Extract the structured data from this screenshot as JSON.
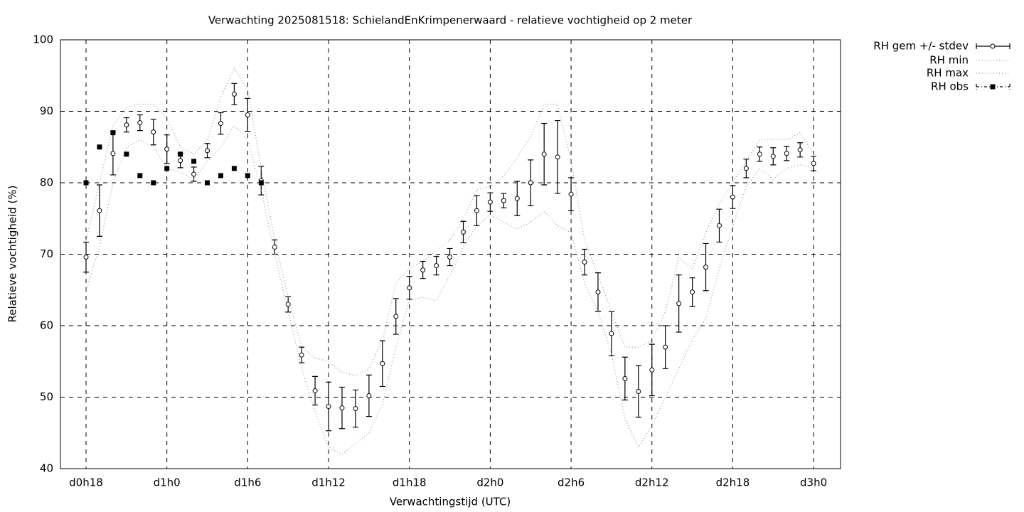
{
  "chart_data": {
    "type": "errorbar-line",
    "title": "Verwachting 2025081518: SchielandEnKrimpenerwaard - relatieve vochtigheid op 2 meter",
    "x_label": "Verwachtingstijd (UTC)",
    "y_label": "Relatieve vochtigheid (%)",
    "xlim": [
      16.1,
      74
    ],
    "ylim": [
      40,
      100
    ],
    "xticks": [
      {
        "value": 18,
        "label": "d0h18"
      },
      {
        "value": 24,
        "label": "d1h0"
      },
      {
        "value": 30,
        "label": "d1h6"
      },
      {
        "value": 36,
        "label": "d1h12"
      },
      {
        "value": 42,
        "label": "d1h18"
      },
      {
        "value": 48,
        "label": "d2h0"
      },
      {
        "value": 54,
        "label": "d2h6"
      },
      {
        "value": 60,
        "label": "d2h12"
      },
      {
        "value": 66,
        "label": "d2h18"
      },
      {
        "value": 72,
        "label": "d3h0"
      }
    ],
    "yticks": [
      40,
      50,
      60,
      70,
      80,
      90,
      100
    ],
    "grid": true,
    "legend": "outside-top-right",
    "x": [
      18,
      19,
      20,
      21,
      22,
      23,
      24,
      25,
      26,
      27,
      28,
      29,
      30,
      31,
      32,
      33,
      34,
      35,
      36,
      37,
      38,
      39,
      40,
      41,
      42,
      43,
      44,
      45,
      46,
      47,
      48,
      49,
      50,
      51,
      52,
      53,
      54,
      55,
      56,
      57,
      58,
      59,
      60,
      61,
      62,
      63,
      64,
      65,
      66,
      67,
      68,
      69,
      70,
      71,
      72
    ],
    "series": [
      {
        "name": "RH gem +/- stdev",
        "style": "errorbar",
        "color": "#000000",
        "values": [
          69.6,
          76.1,
          84.1,
          88.1,
          88.4,
          87.1,
          84.7,
          83.1,
          81.2,
          84.5,
          88.3,
          92.4,
          89.5,
          80.3,
          71.0,
          63.0,
          55.9,
          50.9,
          48.7,
          48.5,
          48.4,
          50.2,
          54.7,
          61.3,
          65.3,
          67.8,
          68.4,
          69.6,
          73.1,
          76.1,
          77.3,
          77.5,
          77.8,
          80.0,
          84.0,
          83.6,
          78.4,
          68.9,
          64.7,
          58.9,
          52.6,
          50.8,
          53.8,
          57.0,
          63.1,
          64.7,
          68.2,
          74.0,
          78.0,
          82.0,
          84.0,
          83.7,
          84.1,
          84.6,
          82.7
        ],
        "errors": [
          2.1,
          3.6,
          3.0,
          1.0,
          1.1,
          1.8,
          2.0,
          1.0,
          1.0,
          1.0,
          1.5,
          1.5,
          2.3,
          2.0,
          1.0,
          1.1,
          1.1,
          2.0,
          3.4,
          2.9,
          2.6,
          2.9,
          3.2,
          2.5,
          1.6,
          1.2,
          1.3,
          1.2,
          1.5,
          2.1,
          1.3,
          1.0,
          2.4,
          3.2,
          4.3,
          5.1,
          2.3,
          1.8,
          2.7,
          3.1,
          3.0,
          3.6,
          3.6,
          3.0,
          4.0,
          2.0,
          3.3,
          2.3,
          1.6,
          1.3,
          1.0,
          1.2,
          1.0,
          1.0,
          1.0
        ]
      },
      {
        "name": "RH min",
        "style": "dotted",
        "color": "#999999",
        "values": [
          65,
          71,
          80,
          85,
          86,
          85,
          82,
          81.5,
          80.5,
          83,
          85,
          88,
          86,
          79,
          70,
          62,
          54,
          48,
          43,
          42,
          43.5,
          45,
          49,
          57,
          63.5,
          64,
          63.5,
          67,
          71,
          74,
          75.5,
          74.5,
          73.5,
          74.5,
          76,
          74,
          73,
          66,
          62,
          56,
          47,
          43,
          46,
          50,
          54,
          58,
          61,
          68,
          74,
          79.5,
          82,
          80.5,
          82,
          82.5,
          82
        ]
      },
      {
        "name": "RH max",
        "style": "dotted",
        "color": "#999999",
        "values": [
          72,
          80,
          88,
          90.5,
          91,
          91,
          89,
          85,
          84,
          86,
          92,
          96,
          93,
          82,
          72,
          64,
          57,
          55.5,
          55,
          53.5,
          53,
          54,
          58,
          66,
          68,
          69,
          70.5,
          72,
          75,
          79,
          79.5,
          81,
          83.5,
          86.5,
          91,
          91,
          83,
          72,
          67,
          62,
          57,
          57,
          58,
          62,
          69.5,
          68,
          73,
          77,
          80,
          83,
          86,
          86,
          86,
          87,
          84
        ]
      },
      {
        "name": "RH obs",
        "style": "points",
        "color": "#000000",
        "values": [
          80,
          85,
          87,
          84,
          81,
          80,
          82,
          84,
          83,
          80,
          81,
          82,
          81,
          80,
          null,
          null,
          null,
          null,
          null,
          null,
          null,
          null,
          null,
          null,
          null,
          null,
          null,
          null,
          null,
          null,
          null,
          null,
          null,
          null,
          null,
          null,
          null,
          null,
          null,
          null,
          null,
          null,
          null,
          null,
          null,
          null,
          null,
          null,
          null,
          null,
          null,
          null,
          null,
          null,
          null
        ]
      }
    ]
  }
}
